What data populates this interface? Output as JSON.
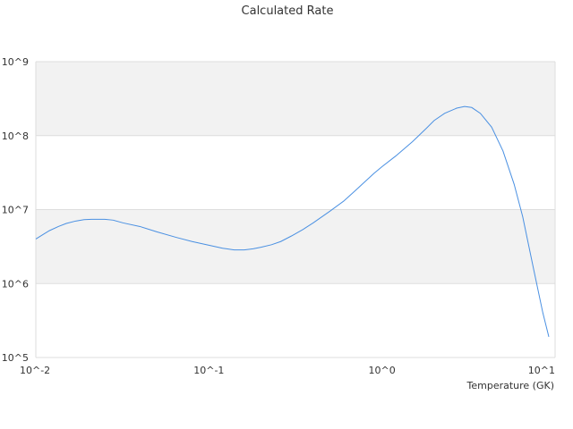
{
  "chart_data": {
    "type": "line",
    "title": "Calculated Rate",
    "xlabel": "Temperature (GK)",
    "ylabel": "",
    "x_scale": "log",
    "y_scale": "log",
    "xlim": [
      0.01,
      10
    ],
    "ylim": [
      100000,
      1000000000
    ],
    "x_ticks": [
      {
        "value": 0.01,
        "label": "10^-2"
      },
      {
        "value": 0.1,
        "label": "10^-1"
      },
      {
        "value": 1,
        "label": "10^0"
      },
      {
        "value": 10,
        "label": "10^1"
      }
    ],
    "y_ticks": [
      {
        "value": 100000,
        "label": "10^5"
      },
      {
        "value": 1000000,
        "label": "10^6"
      },
      {
        "value": 10000000,
        "label": "10^7"
      },
      {
        "value": 100000000,
        "label": "10^8"
      },
      {
        "value": 1000000000,
        "label": "10^9"
      }
    ],
    "grid": "horizontal alternating bands",
    "legend": "none",
    "colors": {
      "line": "#4a90e2",
      "band": "#f2f2f2",
      "gridline": "#dddddd"
    },
    "series": [
      {
        "x": [
          0.01,
          0.011,
          0.012,
          0.0135,
          0.015,
          0.017,
          0.019,
          0.021,
          0.025,
          0.028,
          0.032,
          0.04,
          0.05,
          0.065,
          0.08,
          0.1,
          0.12,
          0.14,
          0.16,
          0.18,
          0.2,
          0.23,
          0.26,
          0.3,
          0.35,
          0.4,
          0.5,
          0.6,
          0.7,
          0.8,
          0.9,
          1.0,
          1.2,
          1.5,
          1.8,
          2.0,
          2.3,
          2.7,
          3.0,
          3.3,
          3.7,
          4.3,
          5.0,
          5.8,
          6.5,
          7.5,
          8.5,
          9.2
        ],
        "y": [
          4000000,
          4600000,
          5200000,
          5900000,
          6500000,
          7000000,
          7300000,
          7400000,
          7400000,
          7200000,
          6600000,
          5900000,
          5000000,
          4200000,
          3700000,
          3300000,
          3000000,
          2850000,
          2850000,
          2950000,
          3100000,
          3350000,
          3700000,
          4400000,
          5400000,
          6600000,
          9500000,
          13000000,
          18000000,
          24000000,
          31000000,
          38000000,
          53000000,
          83000000,
          125000000,
          160000000,
          200000000,
          235000000,
          248000000,
          240000000,
          200000000,
          130000000,
          62000000,
          22000000,
          8000000,
          1600000,
          400000,
          190000
        ]
      }
    ]
  }
}
